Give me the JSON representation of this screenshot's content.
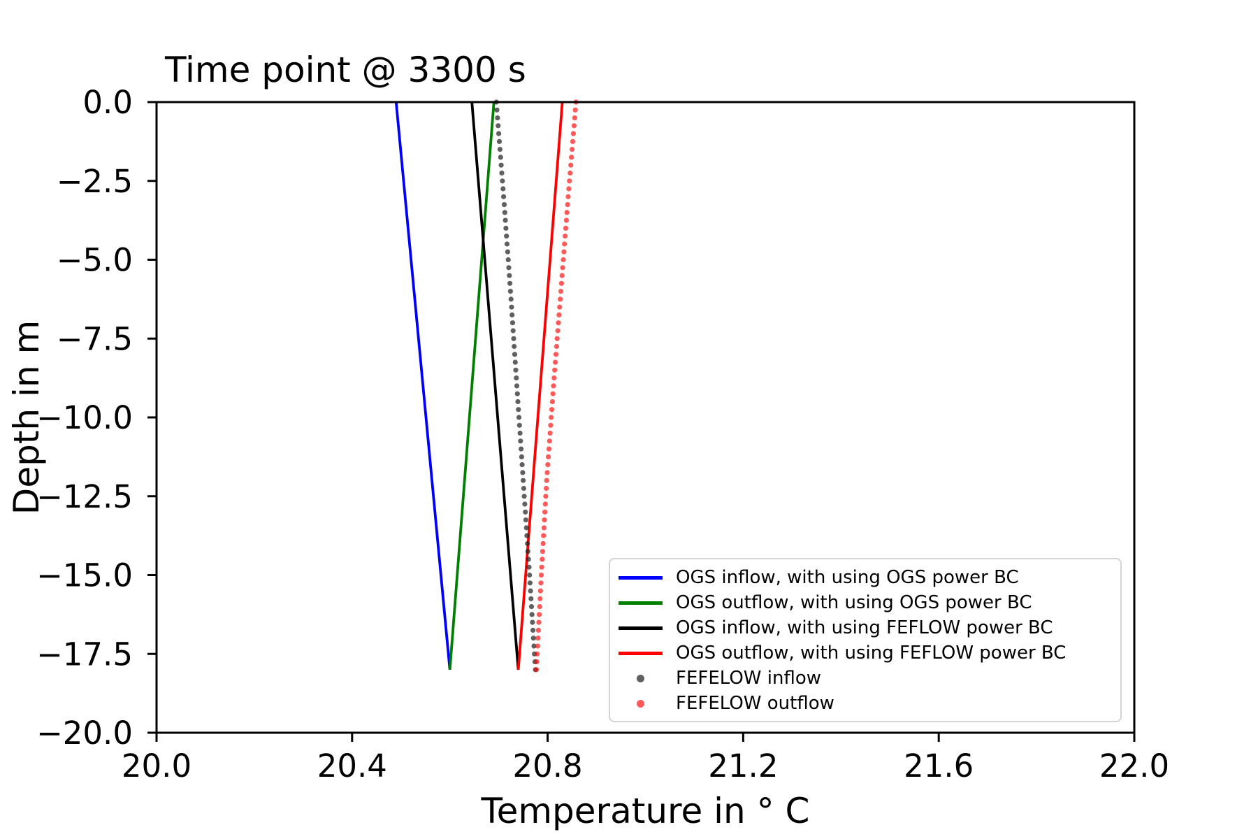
{
  "chart_data": {
    "type": "line",
    "title": "Time point @ 3300 s",
    "xlabel": "Temperature in ° C",
    "ylabel": "Depth in m",
    "xlim": [
      20.0,
      22.0
    ],
    "ylim": [
      -20.0,
      0.0
    ],
    "grid": false,
    "legend_location": "lower right inside",
    "xticks": [
      {
        "v": 20.0,
        "label": "20.0"
      },
      {
        "v": 20.4,
        "label": "20.4"
      },
      {
        "v": 20.8,
        "label": "20.8"
      },
      {
        "v": 21.2,
        "label": "21.2"
      },
      {
        "v": 21.6,
        "label": "21.6"
      },
      {
        "v": 22.0,
        "label": "22.0"
      }
    ],
    "yticks": [
      {
        "v": 0.0,
        "label": "0.0"
      },
      {
        "v": -2.5,
        "label": "−2.5"
      },
      {
        "v": -5.0,
        "label": "−5.0"
      },
      {
        "v": -7.5,
        "label": "−7.5"
      },
      {
        "v": -10.0,
        "label": "−10.0"
      },
      {
        "v": -12.5,
        "label": "−12.5"
      },
      {
        "v": -15.0,
        "label": "−15.0"
      },
      {
        "v": -17.5,
        "label": "−17.5"
      },
      {
        "v": -20.0,
        "label": "−20.0"
      }
    ],
    "series": [
      {
        "name": "ogs-inflow-ogs-power",
        "label": "OGS inflow, with using OGS power BC",
        "marker": "line",
        "color": "#0000ff",
        "line_width": 3.8,
        "points": [
          [
            20.49,
            0.0
          ],
          [
            20.6,
            -18.0
          ]
        ]
      },
      {
        "name": "ogs-outflow-ogs-power",
        "label": "OGS outflow, with using OGS power BC",
        "marker": "line",
        "color": "#008000",
        "line_width": 3.8,
        "points": [
          [
            20.69,
            0.0
          ],
          [
            20.6,
            -18.0
          ]
        ]
      },
      {
        "name": "ogs-inflow-feflow-power",
        "label": "OGS inflow, with using FEFLOW power BC",
        "marker": "line",
        "color": "#000000",
        "line_width": 3.8,
        "points": [
          [
            20.645,
            0.0
          ],
          [
            20.74,
            -18.0
          ]
        ]
      },
      {
        "name": "ogs-outflow-feflow-power",
        "label": "OGS outflow, with using FEFLOW power BC",
        "marker": "line",
        "color": "#ff0000",
        "line_width": 3.8,
        "points": [
          [
            20.83,
            0.0
          ],
          [
            20.74,
            -18.0
          ]
        ]
      },
      {
        "name": "fefelow-inflow",
        "label": "FEFELOW inflow",
        "marker": "dot",
        "color": "rgba(35,35,35,0.72)",
        "dot_step": 0.25,
        "dot_radius": 3.6,
        "points": [
          [
            20.695,
            0.0
          ],
          [
            20.71,
            -3.0
          ],
          [
            20.724,
            -6.0
          ],
          [
            20.737,
            -9.0
          ],
          [
            20.75,
            -12.0
          ],
          [
            20.763,
            -15.0
          ],
          [
            20.775,
            -18.0
          ]
        ]
      },
      {
        "name": "fefelow-outflow",
        "label": "FEFELOW outflow",
        "marker": "dot",
        "color": "rgba(255,0,0,0.65)",
        "dot_step": 0.25,
        "dot_radius": 3.6,
        "points": [
          [
            20.858,
            0.0
          ],
          [
            20.842,
            -3.0
          ],
          [
            20.827,
            -6.0
          ],
          [
            20.812,
            -9.0
          ],
          [
            20.798,
            -12.0
          ],
          [
            20.787,
            -15.0
          ],
          [
            20.777,
            -18.0
          ]
        ]
      }
    ]
  }
}
